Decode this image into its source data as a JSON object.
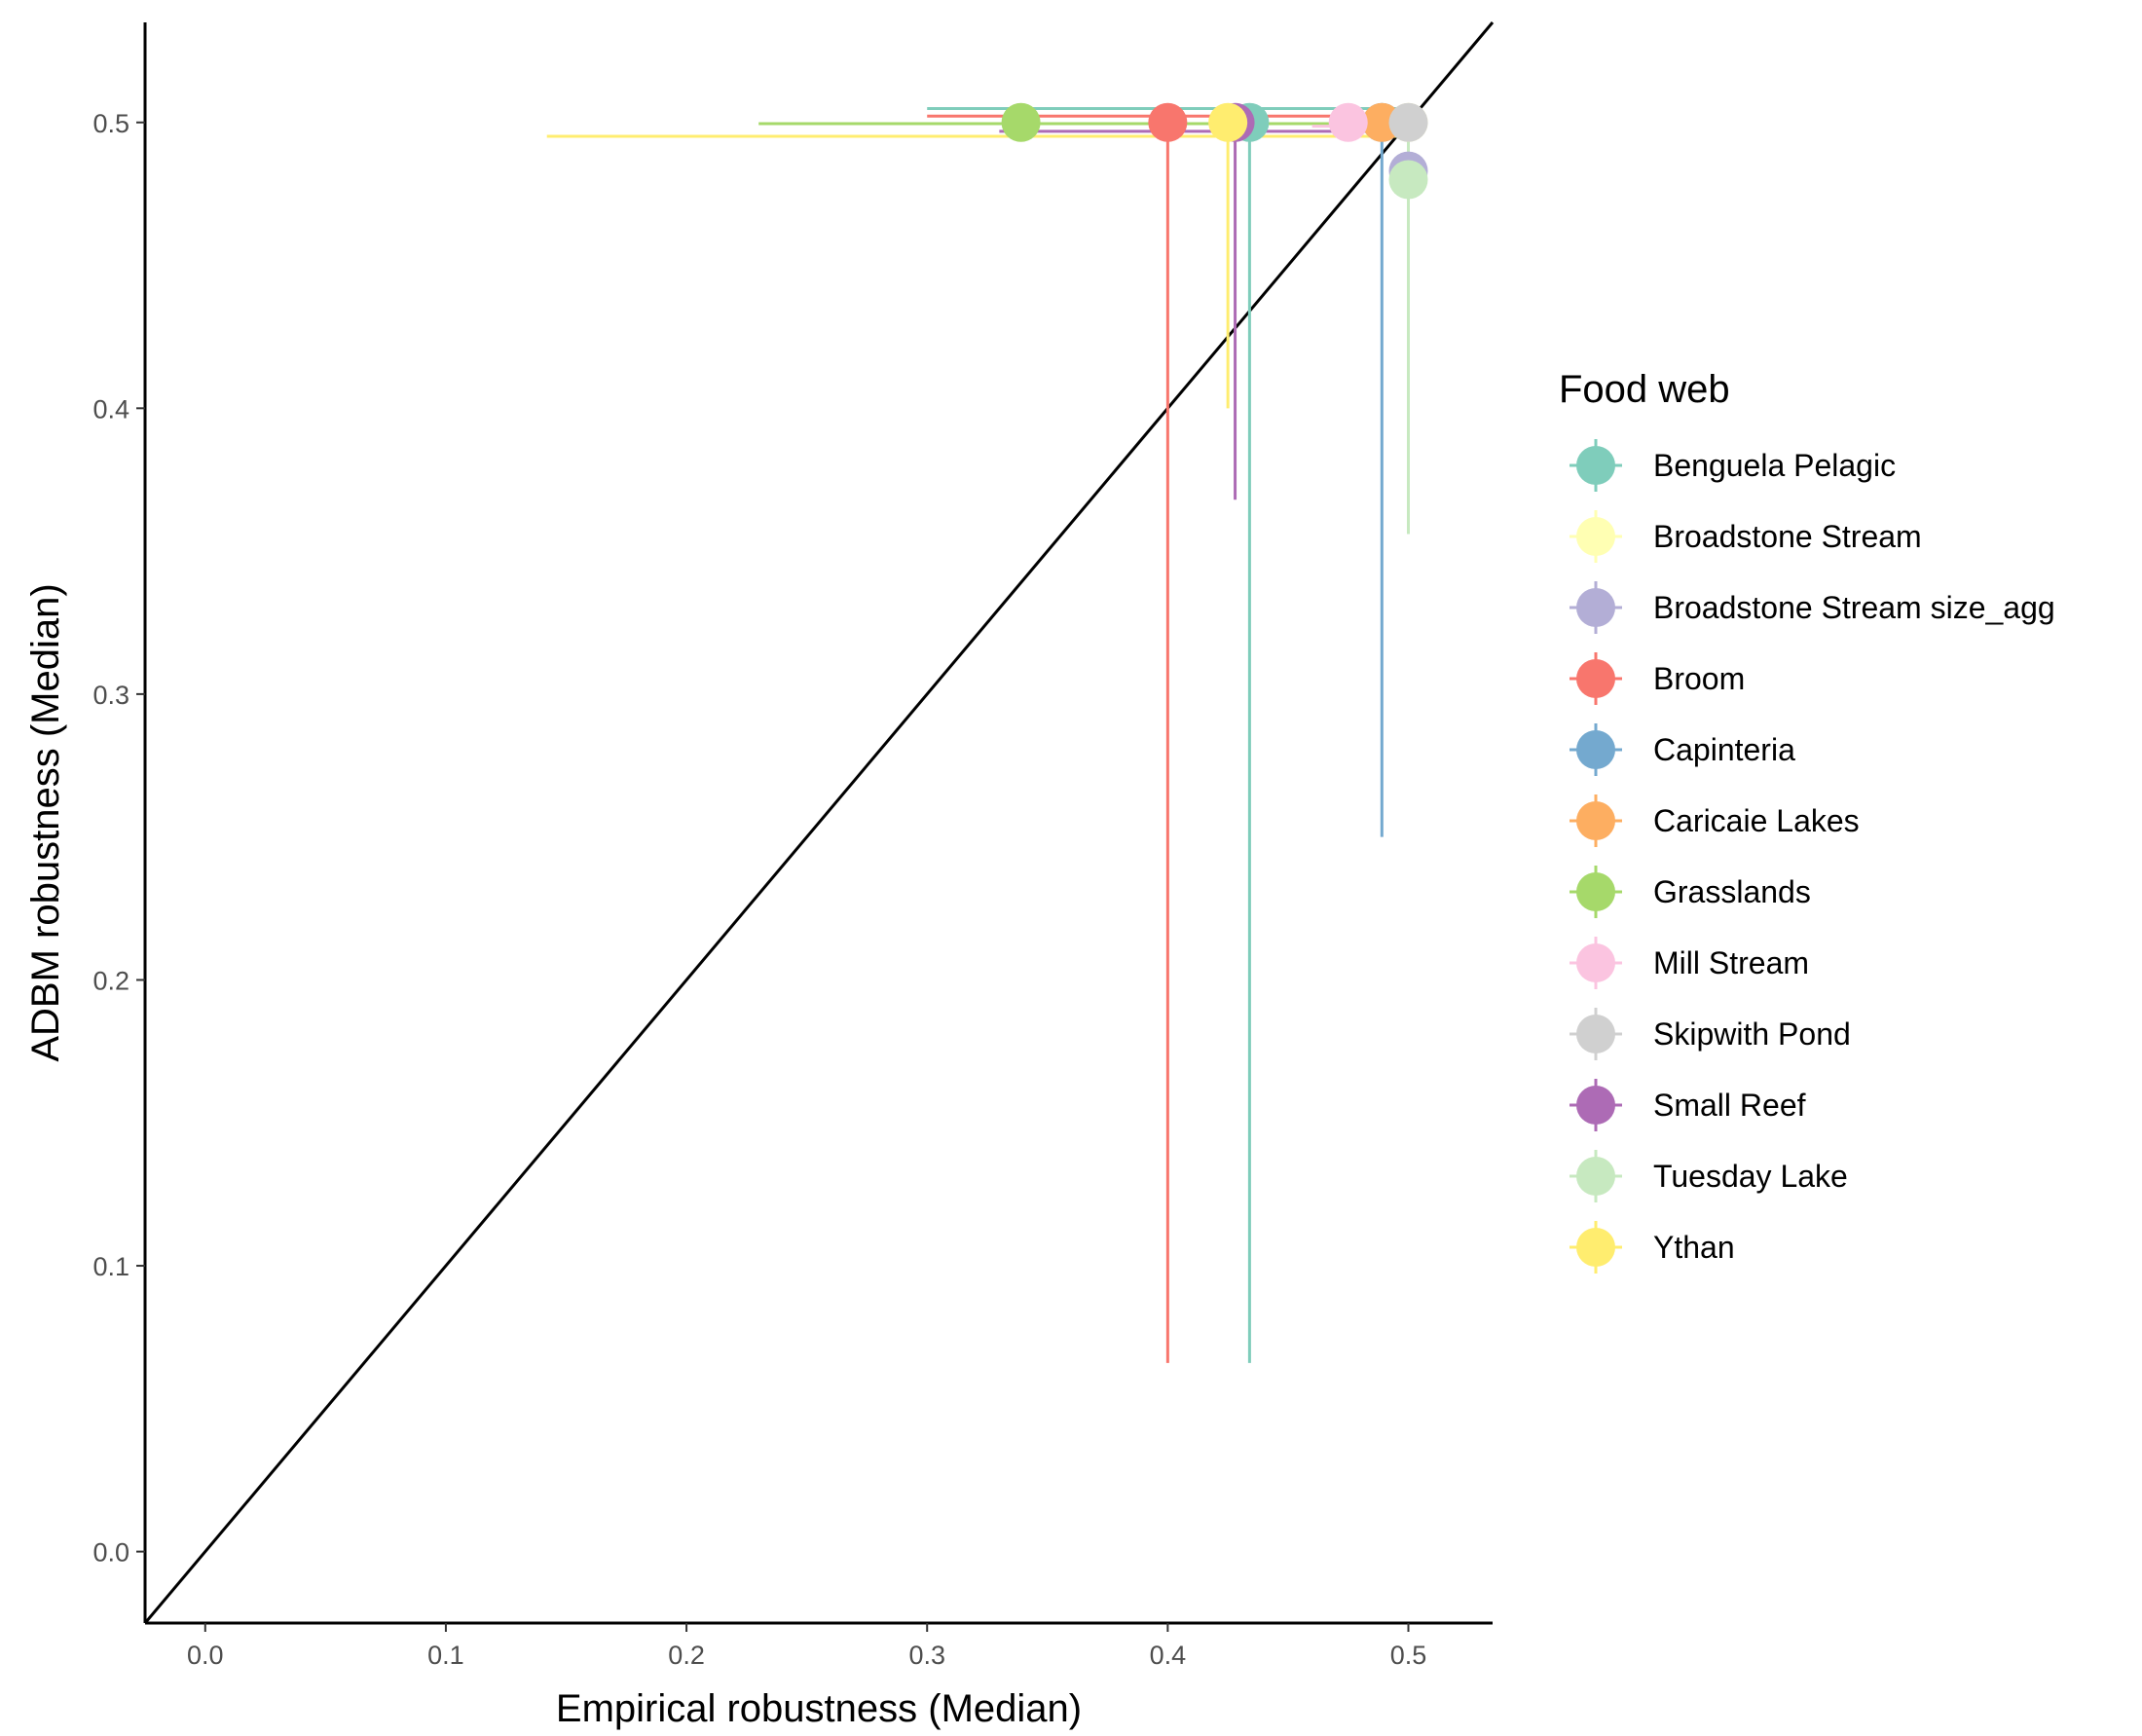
{
  "chart_data": {
    "type": "scatter",
    "xlabel": "Empirical robustness (Median)",
    "ylabel": "ADBM robustness (Median)",
    "xlim": [
      -0.025,
      0.535
    ],
    "ylim": [
      -0.025,
      0.535
    ],
    "x_ticks": [
      "0.0",
      "0.1",
      "0.2",
      "0.3",
      "0.4",
      "0.5"
    ],
    "y_ticks": [
      "0.0",
      "0.1",
      "0.2",
      "0.3",
      "0.4",
      "0.5"
    ],
    "grid": false,
    "reference_line": "y = x",
    "legend": {
      "title": "Food web",
      "position": "right"
    },
    "series": [
      {
        "name": "Benguela Pelagic",
        "color": "#7fcdbb",
        "x": 0.434,
        "y": 0.5,
        "xerr": [
          0.3,
          0.5
        ],
        "yerr": [
          0.066,
          0.5
        ]
      },
      {
        "name": "Broadstone Stream",
        "color": "#ffffb3",
        "x": 0.5,
        "y": 0.5,
        "xerr": [
          0.5,
          0.5
        ],
        "yerr": [
          0.5,
          0.5
        ]
      },
      {
        "name": "Broadstone Stream size_agg",
        "color": "#b3aed6",
        "x": 0.5,
        "y": 0.483,
        "xerr": [
          0.5,
          0.5
        ],
        "yerr": [
          0.483,
          0.5
        ]
      },
      {
        "name": "Broom",
        "color": "#f8766d",
        "x": 0.4,
        "y": 0.5,
        "xerr": [
          0.3,
          0.5
        ],
        "yerr": [
          0.066,
          0.5
        ]
      },
      {
        "name": "Capinteria",
        "color": "#74a9cf",
        "x": 0.489,
        "y": 0.5,
        "xerr": [
          0.489,
          0.5
        ],
        "yerr": [
          0.25,
          0.5
        ]
      },
      {
        "name": "Caricaie Lakes",
        "color": "#fdae61",
        "x": 0.489,
        "y": 0.5,
        "xerr": [
          0.485,
          0.492
        ],
        "yerr": [
          0.495,
          0.503
        ]
      },
      {
        "name": "Grasslands",
        "color": "#a6d96a",
        "x": 0.339,
        "y": 0.5,
        "xerr": [
          0.23,
          0.5
        ],
        "yerr": [
          0.5,
          0.506
        ]
      },
      {
        "name": "Mill Stream",
        "color": "#fbc4e0",
        "x": 0.475,
        "y": 0.5,
        "xerr": [
          0.46,
          0.5
        ],
        "yerr": [
          0.495,
          0.506
        ]
      },
      {
        "name": "Skipwith Pond",
        "color": "#d0d0d0",
        "x": 0.5,
        "y": 0.5,
        "xerr": [
          0.5,
          0.5
        ],
        "yerr": [
          0.5,
          0.5
        ]
      },
      {
        "name": "Small Reef",
        "color": "#ad6bb5",
        "x": 0.428,
        "y": 0.5,
        "xerr": [
          0.33,
          0.5
        ],
        "yerr": [
          0.368,
          0.5
        ]
      },
      {
        "name": "Tuesday Lake",
        "color": "#c7e9c0",
        "x": 0.5,
        "y": 0.48,
        "xerr": [
          0.5,
          0.5
        ],
        "yerr": [
          0.356,
          0.5
        ]
      },
      {
        "name": "Ythan",
        "color": "#ffed6f",
        "x": 0.425,
        "y": 0.5,
        "xerr": [
          0.142,
          0.5
        ],
        "yerr": [
          0.4,
          0.5
        ]
      }
    ]
  }
}
